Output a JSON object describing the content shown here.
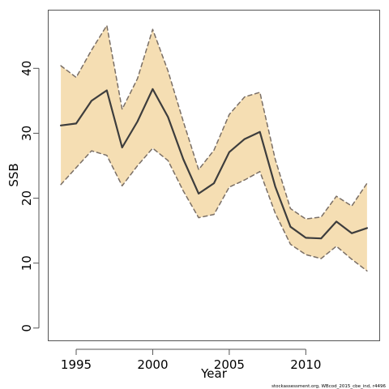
{
  "chart_data": {
    "type": "area",
    "xlabel": "Year",
    "ylabel": "SSB",
    "xlim": [
      1993.2,
      2014.8
    ],
    "ylim": [
      -1.9,
      48.9
    ],
    "x_ticks": [
      1995,
      2000,
      2005,
      2010
    ],
    "y_ticks": [
      0,
      10,
      20,
      30,
      40
    ],
    "grid": false,
    "legend": "none",
    "colors": {
      "band": "#f5deb3",
      "band_edge": "#7a6f66",
      "line": "#3d3d3d",
      "axis": "#555555"
    },
    "series": [
      {
        "role": "estimate",
        "x": [
          1994,
          1995,
          1996,
          1997,
          1998,
          1999,
          2000,
          2001,
          2002,
          2003,
          2004,
          2005,
          2006,
          2007,
          2008,
          2009,
          2010,
          2011,
          2012,
          2013,
          2014
        ],
        "values": [
          31.2,
          31.5,
          35.0,
          36.6,
          27.8,
          31.8,
          36.8,
          32.5,
          26.0,
          20.7,
          22.3,
          27.1,
          29.1,
          30.2,
          21.8,
          15.6,
          13.9,
          13.8,
          16.4,
          14.6,
          15.4
        ]
      },
      {
        "role": "upper",
        "x": [
          1994,
          1995,
          1996,
          1997,
          1998,
          1999,
          2000,
          2001,
          2002,
          2003,
          2004,
          2005,
          2006,
          2007,
          2008,
          2009,
          2010,
          2011,
          2012,
          2013,
          2014
        ],
        "values": [
          40.4,
          38.6,
          42.8,
          46.6,
          33.7,
          38.4,
          46.0,
          39.6,
          31.8,
          24.4,
          27.4,
          32.9,
          35.6,
          36.3,
          26.0,
          18.4,
          16.8,
          17.1,
          20.3,
          18.8,
          22.3
        ]
      },
      {
        "role": "lower",
        "x": [
          1994,
          1995,
          1996,
          1997,
          1998,
          1999,
          2000,
          2001,
          2002,
          2003,
          2004,
          2005,
          2006,
          2007,
          2008,
          2009,
          2010,
          2011,
          2012,
          2013,
          2014
        ],
        "values": [
          22.1,
          24.7,
          27.3,
          26.6,
          21.9,
          25.0,
          27.7,
          25.8,
          21.1,
          17.0,
          17.5,
          21.7,
          22.8,
          24.1,
          17.7,
          12.9,
          11.3,
          10.7,
          12.6,
          10.6,
          8.8
        ]
      }
    ]
  },
  "footnote": "stockassessment.org, WBcod_2015_cbe_ind, r4496"
}
